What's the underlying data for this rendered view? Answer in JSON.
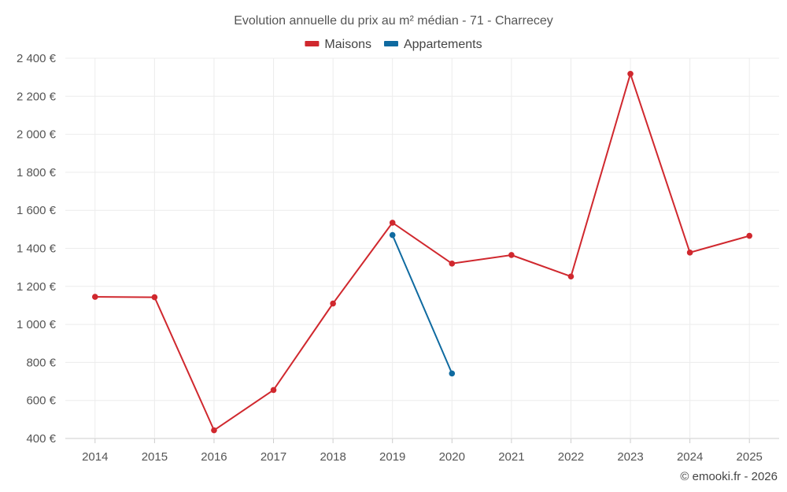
{
  "chart_data": {
    "type": "line",
    "title": "Evolution annuelle du prix au m² médian - 71 - Charrecey",
    "categories": [
      "2014",
      "2015",
      "2016",
      "2017",
      "2018",
      "2019",
      "2020",
      "2021",
      "2022",
      "2023",
      "2024",
      "2025"
    ],
    "series": [
      {
        "name": "Maisons",
        "color": "#d0282e",
        "values": [
          1145,
          1143,
          443,
          655,
          1110,
          1535,
          1320,
          1365,
          1252,
          2318,
          1378,
          1466
        ]
      },
      {
        "name": "Appartements",
        "color": "#0f6aa0",
        "values": [
          null,
          null,
          null,
          null,
          null,
          1470,
          742,
          null,
          null,
          null,
          null,
          null
        ]
      }
    ],
    "yticks": [
      {
        "value": 400,
        "label": "400 €"
      },
      {
        "value": 600,
        "label": "600 €"
      },
      {
        "value": 800,
        "label": "800 €"
      },
      {
        "value": 1000,
        "label": "1 000 €"
      },
      {
        "value": 1200,
        "label": "1 200 €"
      },
      {
        "value": 1400,
        "label": "1 400 €"
      },
      {
        "value": 1600,
        "label": "1 600 €"
      },
      {
        "value": 1800,
        "label": "1 800 €"
      },
      {
        "value": 2000,
        "label": "2 000 €"
      },
      {
        "value": 2200,
        "label": "2 200 €"
      },
      {
        "value": 2400,
        "label": "2 400 €"
      }
    ],
    "ylim": [
      400,
      2400
    ],
    "xlabel": "",
    "ylabel": "",
    "grid": true,
    "legend_position": "top-center"
  },
  "credit": "© emooki.fr - 2026"
}
